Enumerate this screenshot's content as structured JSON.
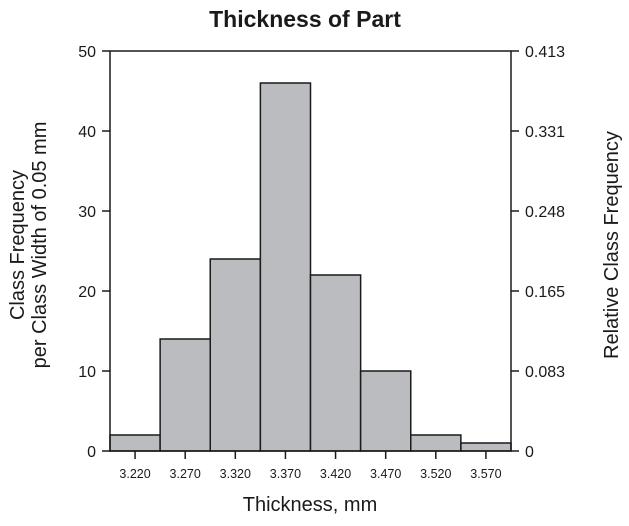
{
  "chart_data": {
    "type": "bar",
    "title": "Thickness of Part",
    "xlabel": "Thickness, mm",
    "ylabel_left": [
      "Class Frequency",
      "per Class Width of 0.05 mm"
    ],
    "ylabel_right": "Relative  Class Frequency",
    "categories": [
      "3.220",
      "3.270",
      "3.320",
      "3.370",
      "3.420",
      "3.470",
      "3.520",
      "3.570"
    ],
    "values": [
      2,
      14,
      24,
      46,
      22,
      10,
      2,
      1
    ],
    "ylim": [
      0,
      50
    ],
    "left_ticks": [
      "0",
      "10",
      "20",
      "30",
      "40",
      "50"
    ],
    "right_ticks": [
      "0",
      "0.083",
      "0.165",
      "0.248",
      "0.331",
      "0.413"
    ],
    "grid": false,
    "bar_color": "#bbbcc0",
    "edge_color": "#1a1a1a"
  }
}
